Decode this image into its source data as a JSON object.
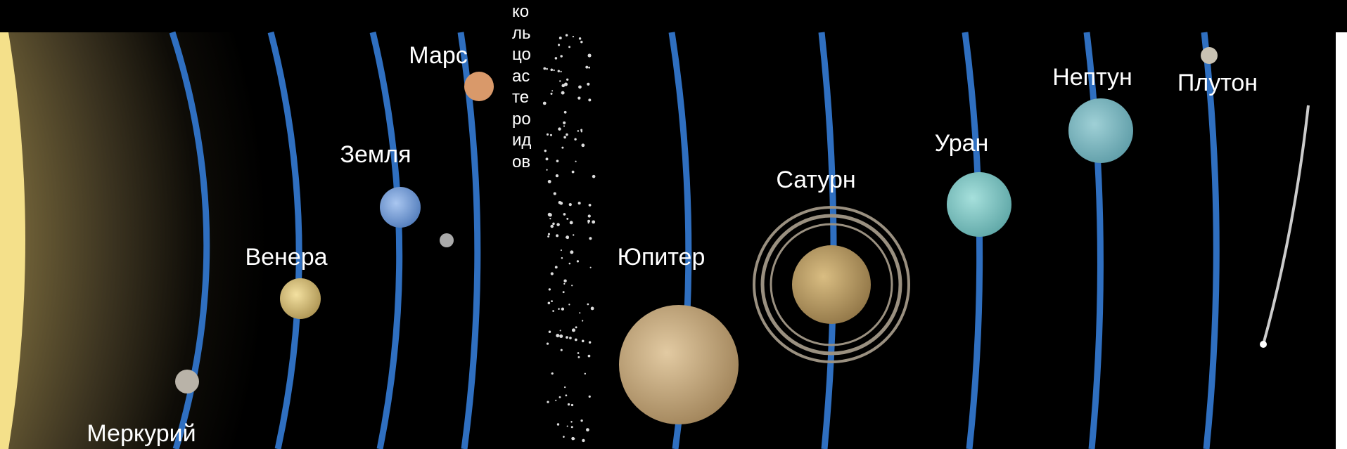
{
  "labels": [
    "Меркурий",
    "Венера",
    "Земля",
    "Марс",
    "кольцо астероидов",
    "Юпитер",
    "Сатурн",
    "Уран",
    "Нептун",
    "Плутон"
  ]
}
